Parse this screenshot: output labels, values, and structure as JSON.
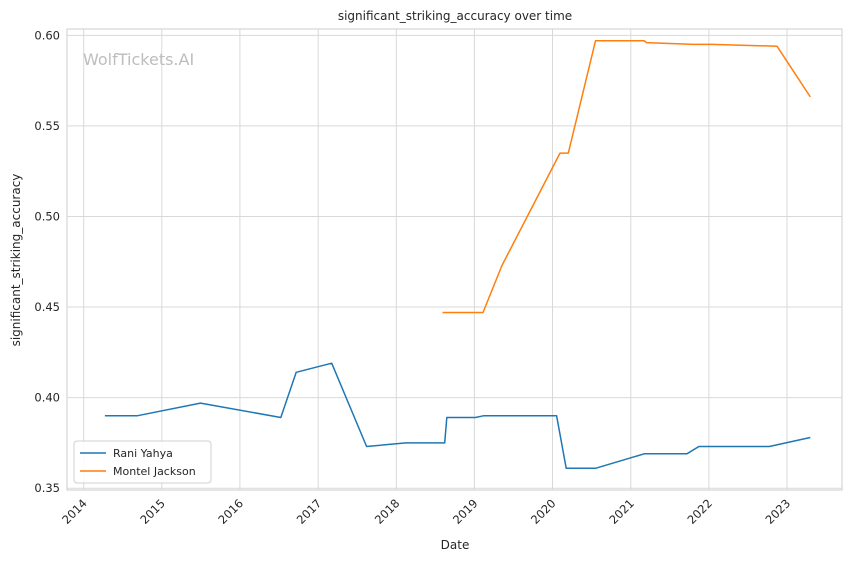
{
  "watermark": "WolfTickets.AI",
  "chart_data": {
    "type": "line",
    "title": "significant_striking_accuracy over time",
    "xlabel": "Date",
    "ylabel": "significant_striking_accuracy",
    "xlim": [
      "2013-10-15",
      "2023-09-15"
    ],
    "ylim": [
      0.349,
      0.6035
    ],
    "x_ticks": [
      "2014",
      "2015",
      "2016",
      "2017",
      "2018",
      "2019",
      "2020",
      "2021",
      "2022",
      "2023"
    ],
    "y_ticks": [
      "0.35",
      "0.40",
      "0.45",
      "0.50",
      "0.55",
      "0.60"
    ],
    "grid": true,
    "legend_position": "lower-left",
    "series": [
      {
        "name": "Rani Yahya",
        "color": "#1f77b4",
        "points": [
          [
            "2014-04-10",
            0.39
          ],
          [
            "2014-09-10",
            0.39
          ],
          [
            "2015-07-01",
            0.397
          ],
          [
            "2016-07-10",
            0.389
          ],
          [
            "2016-09-20",
            0.414
          ],
          [
            "2017-03-05",
            0.419
          ],
          [
            "2017-08-15",
            0.373
          ],
          [
            "2018-02-15",
            0.375
          ],
          [
            "2018-08-15",
            0.375
          ],
          [
            "2018-08-25",
            0.389
          ],
          [
            "2019-01-05",
            0.389
          ],
          [
            "2019-02-15",
            0.39
          ],
          [
            "2020-01-20",
            0.39
          ],
          [
            "2020-03-05",
            0.361
          ],
          [
            "2020-07-20",
            0.361
          ],
          [
            "2021-03-05",
            0.369
          ],
          [
            "2021-09-20",
            0.369
          ],
          [
            "2021-11-15",
            0.373
          ],
          [
            "2022-10-10",
            0.373
          ],
          [
            "2023-04-20",
            0.378
          ]
        ]
      },
      {
        "name": "Montel Jackson",
        "color": "#ff7f0e",
        "points": [
          [
            "2018-08-05",
            0.447
          ],
          [
            "2019-02-10",
            0.447
          ],
          [
            "2019-05-10",
            0.473
          ],
          [
            "2020-02-05",
            0.535
          ],
          [
            "2020-03-15",
            0.535
          ],
          [
            "2020-07-20",
            0.597
          ],
          [
            "2021-03-05",
            0.597
          ],
          [
            "2021-03-15",
            0.596
          ],
          [
            "2021-10-20",
            0.595
          ],
          [
            "2022-01-15",
            0.595
          ],
          [
            "2022-11-15",
            0.594
          ],
          [
            "2023-04-20",
            0.566
          ]
        ]
      }
    ]
  }
}
